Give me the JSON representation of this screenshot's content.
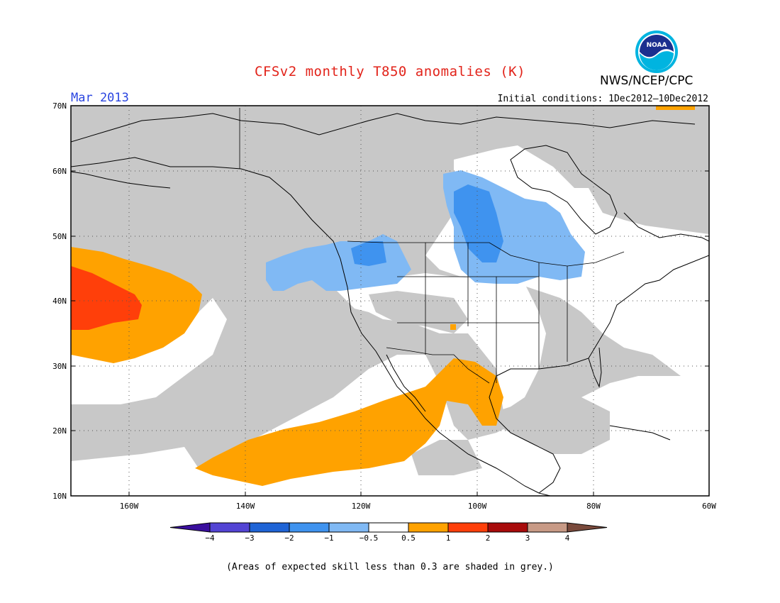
{
  "header": {
    "title": "CFSv2 monthly T850 anomalies (K)",
    "agency": "NWS/NCEP/CPC",
    "logo_text": "NOAA",
    "valid_month": "Mar 2013",
    "initial_conditions": "Initial conditions: 1Dec2012–10Dec2012"
  },
  "map": {
    "lon_range": [
      "170W",
      "60W"
    ],
    "lat_range": [
      "10N",
      "70N"
    ],
    "lat_labels": [
      "70N",
      "60N",
      "50N",
      "40N",
      "30N",
      "20N",
      "10N"
    ],
    "lon_labels": [
      "160W",
      "140W",
      "120W",
      "100W",
      "80W",
      "60W"
    ],
    "grid": "dotted",
    "colors": {
      "grey_low_skill": "#c8c8c8",
      "coastline": "#000000"
    }
  },
  "colorbar": {
    "labels": [
      "−4",
      "−3",
      "−2",
      "−1",
      "−0.5",
      "0.5",
      "1",
      "2",
      "3",
      "4"
    ],
    "colors": [
      "#3a0f9e",
      "#5344d4",
      "#1f64d6",
      "#3f93ef",
      "#80b9f4",
      "#ffffff",
      "#ffa200",
      "#ff3f0a",
      "#a80b0b",
      "#c89a86",
      "#7a4a3c"
    ]
  },
  "footnote": "(Areas of expected skill less than 0.3 are shaded in grey.)"
}
